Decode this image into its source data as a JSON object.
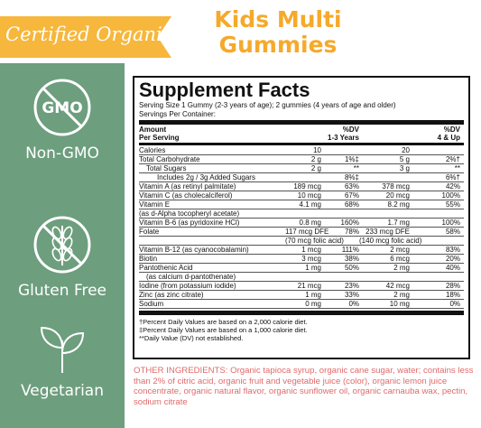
{
  "banner": {
    "text": "Certified Organic"
  },
  "title": {
    "line1": "Kids Multi",
    "line2": "Gummies"
  },
  "badges": [
    {
      "label": "Non-GMO",
      "icon_text": "GMO",
      "icon": "no-gmo-icon"
    },
    {
      "label": "Gluten Free",
      "icon": "wheat-slash-icon"
    },
    {
      "label": "Vegetarian",
      "icon": "leaf-icon"
    }
  ],
  "facts": {
    "title": "Supplement Facts",
    "serving_size": "Serving Size 1 Gummy (2-3 years of age); 2 gummies (4 years of age and older)",
    "servings_per_container": "Servings Per Container:",
    "header": {
      "amount": "Amount",
      "per_serving": "Per Serving",
      "dv": "%DV",
      "col1": "1-3 Years",
      "dv2": "%DV",
      "col2": "4 & Up"
    },
    "rows": [
      {
        "name": "Calories",
        "a1": "10",
        "p1": "",
        "a2": "20",
        "p2": "",
        "indent": 0
      },
      {
        "name": "Total Carbohydrate",
        "a1": "2 g",
        "p1": "1%‡",
        "a2": "5 g",
        "p2": "2%†",
        "indent": 0
      },
      {
        "name": "Total Sugars",
        "a1": "2 g",
        "p1": "**",
        "a2": "3 g",
        "p2": "**",
        "indent": 1
      },
      {
        "name": "Includes 2g / 3g Added Sugars",
        "a1": "",
        "p1": "8%‡",
        "a2": "",
        "p2": "6%†",
        "indent": 2
      },
      {
        "name": "Vitamin A (as retinyl palmitate)",
        "a1": "189 mcg",
        "p1": "63%",
        "a2": "378 mcg",
        "p2": "42%",
        "indent": 0
      },
      {
        "name": "Vitamin C (as cholecalciferol)",
        "a1": "10 mcg",
        "p1": "67%",
        "a2": "20 mcg",
        "p2": "100%",
        "indent": 0
      },
      {
        "name": "Vitamin E",
        "a1": "4.1 mg",
        "p1": "68%",
        "a2": "8.2 mg",
        "p2": "55%",
        "indent": 0
      },
      {
        "name": "(as d-Alpha tocopheryl acetate)",
        "a1": "",
        "p1": "",
        "a2": "",
        "p2": "",
        "indent": 0
      },
      {
        "name": "Vitamin B-6 (as pyridoxine HCl)",
        "a1": "0.8 mg",
        "p1": "160%",
        "a2": "1.7 mg",
        "p2": "100%",
        "indent": 0
      },
      {
        "name": "Folate",
        "a1": "117 mcg DFE",
        "p1": "78%",
        "a2": "233 mcg DFE",
        "p2": "58%",
        "indent": 0
      },
      {
        "name": "",
        "a1": "(70 mcg folic acid)",
        "p1": "",
        "a2": "(140 mcg folic acid)",
        "p2": "",
        "indent": 0
      },
      {
        "name": "Vitamin B-12 (as cyanocobalamin)",
        "a1": "1 mcg",
        "p1": "111%",
        "a2": "2 mcg",
        "p2": "83%",
        "indent": 0
      },
      {
        "name": "Biotin",
        "a1": "3 mcg",
        "p1": "38%",
        "a2": "6 mcg",
        "p2": "20%",
        "indent": 0
      },
      {
        "name": "Pantothenic Acid",
        "a1": "1 mg",
        "p1": "50%",
        "a2": "2 mg",
        "p2": "40%",
        "indent": 0
      },
      {
        "name": "(as calcium d-pantothenate)",
        "a1": "",
        "p1": "",
        "a2": "",
        "p2": "",
        "indent": 1
      },
      {
        "name": "Iodine (from potassium iodide)",
        "a1": "21 mcg",
        "p1": "23%",
        "a2": "42 mcg",
        "p2": "28%",
        "indent": 0
      },
      {
        "name": "Zinc (as zinc citrate)",
        "a1": "1 mg",
        "p1": "33%",
        "a2": "2 mg",
        "p2": "18%",
        "indent": 0
      },
      {
        "name": "Sodium",
        "a1": "0 mg",
        "p1": "0%",
        "a2": "10 mg",
        "p2": "0%",
        "indent": 0
      }
    ],
    "footnotes": [
      "†Percent Daily Values are based on a 2,000 calorie diet.",
      "‡Percent Daily Values are based on a 1,000 calorie diet.",
      "**Daily Value (DV) not established."
    ]
  },
  "ingredients": "OTHER INGREDIENTS: Organic tapioca syrup, organic cane sugar, water; contains less than 2% of citric acid, organic fruit and vegetable juice (color), organic lemon juice concentrate, organic natural flavor, organic sunflower oil, organic carnauba wax, pectin, sodium citrate",
  "colors": {
    "sidebar": "#6d9e7e",
    "banner": "#f6b73c",
    "title": "#f6a92a",
    "ingredients": "#e06a6a"
  }
}
